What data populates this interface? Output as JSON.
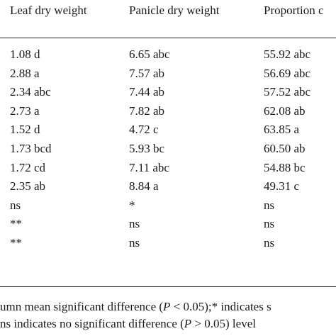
{
  "table": {
    "headers": [
      "Leaf dry weight",
      "Panicle dry weight",
      "Proportion c"
    ],
    "rows": [
      [
        "1.08 d",
        "6.65 abc",
        "55.92 abc"
      ],
      [
        "2.88 a",
        "7.57 ab",
        "56.69 abc"
      ],
      [
        "2.34 abc",
        "7.44 ab",
        "57.52 abc"
      ],
      [
        "2.73 a",
        "7.82 ab",
        "62.08 ab"
      ],
      [
        "1.52 d",
        "4.72 c",
        "63.85 a"
      ],
      [
        "1.73 bcd",
        "5.93 bc",
        "60.50 ab"
      ],
      [
        "1.72 cd",
        "7.11 abc",
        "54.88 bc"
      ],
      [
        "2.35 ab",
        "8.84 a",
        "49.31 c"
      ],
      [
        "ns",
        "*",
        "ns"
      ],
      [
        "**",
        "ns",
        "ns"
      ],
      [
        "**",
        "ns",
        "ns"
      ]
    ]
  },
  "footnote": {
    "line1_a": "umn mean significant difference (",
    "line1_p": "P",
    "line1_b": " < 0.05);* indicates s",
    "line2_a": "ns indicates no significant difference (",
    "line2_p": "P",
    "line2_b": " > 0.05) level"
  }
}
